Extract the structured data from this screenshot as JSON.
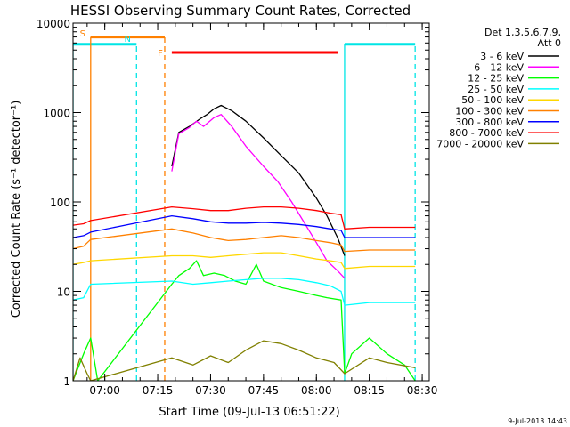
{
  "chart_data": {
    "type": "line",
    "title": "HESSI Observing Summary Count Rates, Corrected",
    "xlabel": "Start Time (09-Jul-13 06:51:22)",
    "ylabel": "Corrected Count Rate (s⁻¹ detector⁻¹)",
    "footer": "9-Jul-2013 14:43",
    "y_scale": "log",
    "ylim": [
      1,
      10000
    ],
    "xlim": [
      "06:51",
      "08:32"
    ],
    "x_ticks": [
      "07:00",
      "07:15",
      "07:30",
      "07:45",
      "08:00",
      "08:15",
      "08:30"
    ],
    "y_ticks": [
      "1",
      "10",
      "100",
      "1000",
      "10000"
    ],
    "legend": {
      "title_lines": [
        "Det 1,3,5,6,7,9,",
        "Att 0"
      ],
      "placement": "right"
    },
    "colors": {
      "s_marker": "#ff8000",
      "n_marker": "#00e5e5",
      "f_marker": "#ff0000"
    },
    "markers": [
      {
        "label": "S",
        "kind": "vertical",
        "time": "06:56",
        "color": "#ff8000"
      },
      {
        "label": "N",
        "kind": "vertical",
        "time": "07:09",
        "color": "#00e5e5"
      },
      {
        "label": "F",
        "kind": "vertical",
        "time": "07:17",
        "color": "#ff8000"
      }
    ],
    "intervals": [
      {
        "time_start": "06:51",
        "time_end": "07:09",
        "value": 5800,
        "color": "#00e5e5"
      },
      {
        "time_start": "06:56",
        "time_end": "07:17",
        "value": 7000,
        "color": "#ff8000"
      },
      {
        "time_start": "07:19",
        "time_end": "08:06",
        "value": 4700,
        "color": "#ff0000"
      },
      {
        "time_start": "08:08",
        "time_end": "08:28",
        "value": 5800,
        "color": "#00e5e5"
      }
    ],
    "series": [
      {
        "name": "3 - 6 keV",
        "color": "#000000",
        "points": [
          [
            "07:19",
            250
          ],
          [
            "07:21",
            600
          ],
          [
            "07:24",
            700
          ],
          [
            "07:27",
            850
          ],
          [
            "07:29",
            950
          ],
          [
            "07:31",
            1100
          ],
          [
            "07:33",
            1200
          ],
          [
            "07:36",
            1050
          ],
          [
            "07:40",
            800
          ],
          [
            "07:45",
            520
          ],
          [
            "07:50",
            330
          ],
          [
            "07:55",
            210
          ],
          [
            "08:00",
            110
          ],
          [
            "08:03",
            70
          ],
          [
            "08:06",
            40
          ],
          [
            "08:08",
            25
          ]
        ]
      },
      {
        "name": "6 - 12 keV",
        "color": "#ff00ff",
        "points": [
          [
            "07:19",
            220
          ],
          [
            "07:21",
            580
          ],
          [
            "07:24",
            680
          ],
          [
            "07:26",
            800
          ],
          [
            "07:28",
            700
          ],
          [
            "07:31",
            880
          ],
          [
            "07:33",
            950
          ],
          [
            "07:36",
            700
          ],
          [
            "07:40",
            420
          ],
          [
            "07:45",
            250
          ],
          [
            "07:49",
            170
          ],
          [
            "07:53",
            100
          ],
          [
            "07:57",
            55
          ],
          [
            "08:00",
            35
          ],
          [
            "08:03",
            22
          ],
          [
            "08:06",
            17
          ],
          [
            "08:08",
            14
          ]
        ]
      },
      {
        "name": "12 - 25 keV",
        "color": "#00ff00",
        "points": [
          [
            "06:51",
            1
          ],
          [
            "06:54",
            2
          ],
          [
            "06:56",
            3
          ],
          [
            "06:58",
            1
          ],
          [
            "07:19",
            12
          ],
          [
            "07:21",
            15
          ],
          [
            "07:24",
            18
          ],
          [
            "07:26",
            22
          ],
          [
            "07:28",
            15
          ],
          [
            "07:31",
            16
          ],
          [
            "07:34",
            15
          ],
          [
            "07:37",
            13
          ],
          [
            "07:40",
            12
          ],
          [
            "07:43",
            20
          ],
          [
            "07:45",
            13
          ],
          [
            "07:50",
            11
          ],
          [
            "07:55",
            10
          ],
          [
            "08:00",
            9
          ],
          [
            "08:03",
            8.5
          ],
          [
            "08:07",
            8
          ],
          [
            "08:08",
            1.2
          ],
          [
            "08:10",
            2
          ],
          [
            "08:15",
            3
          ],
          [
            "08:20",
            2
          ],
          [
            "08:25",
            1.5
          ],
          [
            "08:28",
            1
          ]
        ]
      },
      {
        "name": "25 - 50 keV",
        "color": "#00ffff",
        "points": [
          [
            "06:51",
            8
          ],
          [
            "06:54",
            8.5
          ],
          [
            "06:56",
            12
          ],
          [
            "07:19",
            13
          ],
          [
            "07:25",
            12
          ],
          [
            "07:30",
            12.5
          ],
          [
            "07:35",
            13
          ],
          [
            "07:40",
            13.5
          ],
          [
            "07:45",
            14
          ],
          [
            "07:50",
            14
          ],
          [
            "07:55",
            13.5
          ],
          [
            "08:00",
            12.5
          ],
          [
            "08:04",
            11.5
          ],
          [
            "08:07",
            10
          ],
          [
            "08:08",
            7
          ],
          [
            "08:15",
            7.5
          ],
          [
            "08:20",
            7.5
          ],
          [
            "08:28",
            7.5
          ]
        ]
      },
      {
        "name": "50 - 100 keV",
        "color": "#ffd700",
        "points": [
          [
            "06:51",
            20
          ],
          [
            "06:54",
            21
          ],
          [
            "06:56",
            22
          ],
          [
            "07:19",
            25
          ],
          [
            "07:25",
            25
          ],
          [
            "07:30",
            24
          ],
          [
            "07:35",
            25
          ],
          [
            "07:40",
            26
          ],
          [
            "07:45",
            27
          ],
          [
            "07:50",
            27
          ],
          [
            "07:55",
            25
          ],
          [
            "08:00",
            23
          ],
          [
            "08:04",
            22
          ],
          [
            "08:07",
            21
          ],
          [
            "08:08",
            18
          ],
          [
            "08:15",
            19
          ],
          [
            "08:20",
            19
          ],
          [
            "08:28",
            19
          ]
        ]
      },
      {
        "name": "100 - 300 keV",
        "color": "#ff8000",
        "points": [
          [
            "06:51",
            30
          ],
          [
            "06:54",
            32
          ],
          [
            "06:56",
            38
          ],
          [
            "07:19",
            50
          ],
          [
            "07:25",
            45
          ],
          [
            "07:30",
            40
          ],
          [
            "07:35",
            37
          ],
          [
            "07:40",
            38
          ],
          [
            "07:45",
            40
          ],
          [
            "07:50",
            42
          ],
          [
            "07:55",
            40
          ],
          [
            "08:00",
            37
          ],
          [
            "08:04",
            35
          ],
          [
            "08:07",
            33
          ],
          [
            "08:08",
            28
          ],
          [
            "08:15",
            29
          ],
          [
            "08:20",
            29
          ],
          [
            "08:28",
            29
          ]
        ]
      },
      {
        "name": "300 - 800 keV",
        "color": "#0000ff",
        "points": [
          [
            "06:51",
            40
          ],
          [
            "06:54",
            42
          ],
          [
            "06:56",
            46
          ],
          [
            "07:19",
            70
          ],
          [
            "07:25",
            65
          ],
          [
            "07:30",
            60
          ],
          [
            "07:35",
            58
          ],
          [
            "07:40",
            58
          ],
          [
            "07:45",
            59
          ],
          [
            "07:50",
            58
          ],
          [
            "07:55",
            56
          ],
          [
            "08:00",
            53
          ],
          [
            "08:04",
            50
          ],
          [
            "08:07",
            48
          ],
          [
            "08:08",
            40
          ],
          [
            "08:15",
            40
          ],
          [
            "08:20",
            40
          ],
          [
            "08:28",
            40
          ]
        ]
      },
      {
        "name": "800 - 7000 keV",
        "color": "#ff0000",
        "points": [
          [
            "06:51",
            55
          ],
          [
            "06:54",
            57
          ],
          [
            "06:56",
            62
          ],
          [
            "07:19",
            88
          ],
          [
            "07:25",
            84
          ],
          [
            "07:30",
            80
          ],
          [
            "07:35",
            80
          ],
          [
            "07:40",
            85
          ],
          [
            "07:45",
            88
          ],
          [
            "07:50",
            88
          ],
          [
            "07:55",
            85
          ],
          [
            "08:00",
            80
          ],
          [
            "08:04",
            75
          ],
          [
            "08:07",
            72
          ],
          [
            "08:08",
            50
          ],
          [
            "08:15",
            52
          ],
          [
            "08:20",
            52
          ],
          [
            "08:28",
            52
          ]
        ]
      },
      {
        "name": "7000 - 20000 keV",
        "color": "#808000",
        "points": [
          [
            "06:51",
            1
          ],
          [
            "06:53",
            1.8
          ],
          [
            "06:55",
            1.2
          ],
          [
            "06:56",
            1
          ],
          [
            "07:19",
            1.8
          ],
          [
            "07:25",
            1.5
          ],
          [
            "07:30",
            1.9
          ],
          [
            "07:35",
            1.6
          ],
          [
            "07:40",
            2.2
          ],
          [
            "07:45",
            2.8
          ],
          [
            "07:50",
            2.6
          ],
          [
            "07:55",
            2.2
          ],
          [
            "08:00",
            1.8
          ],
          [
            "08:05",
            1.6
          ],
          [
            "08:08",
            1.2
          ],
          [
            "08:15",
            1.8
          ],
          [
            "08:20",
            1.6
          ],
          [
            "08:28",
            1.4
          ]
        ]
      }
    ]
  }
}
